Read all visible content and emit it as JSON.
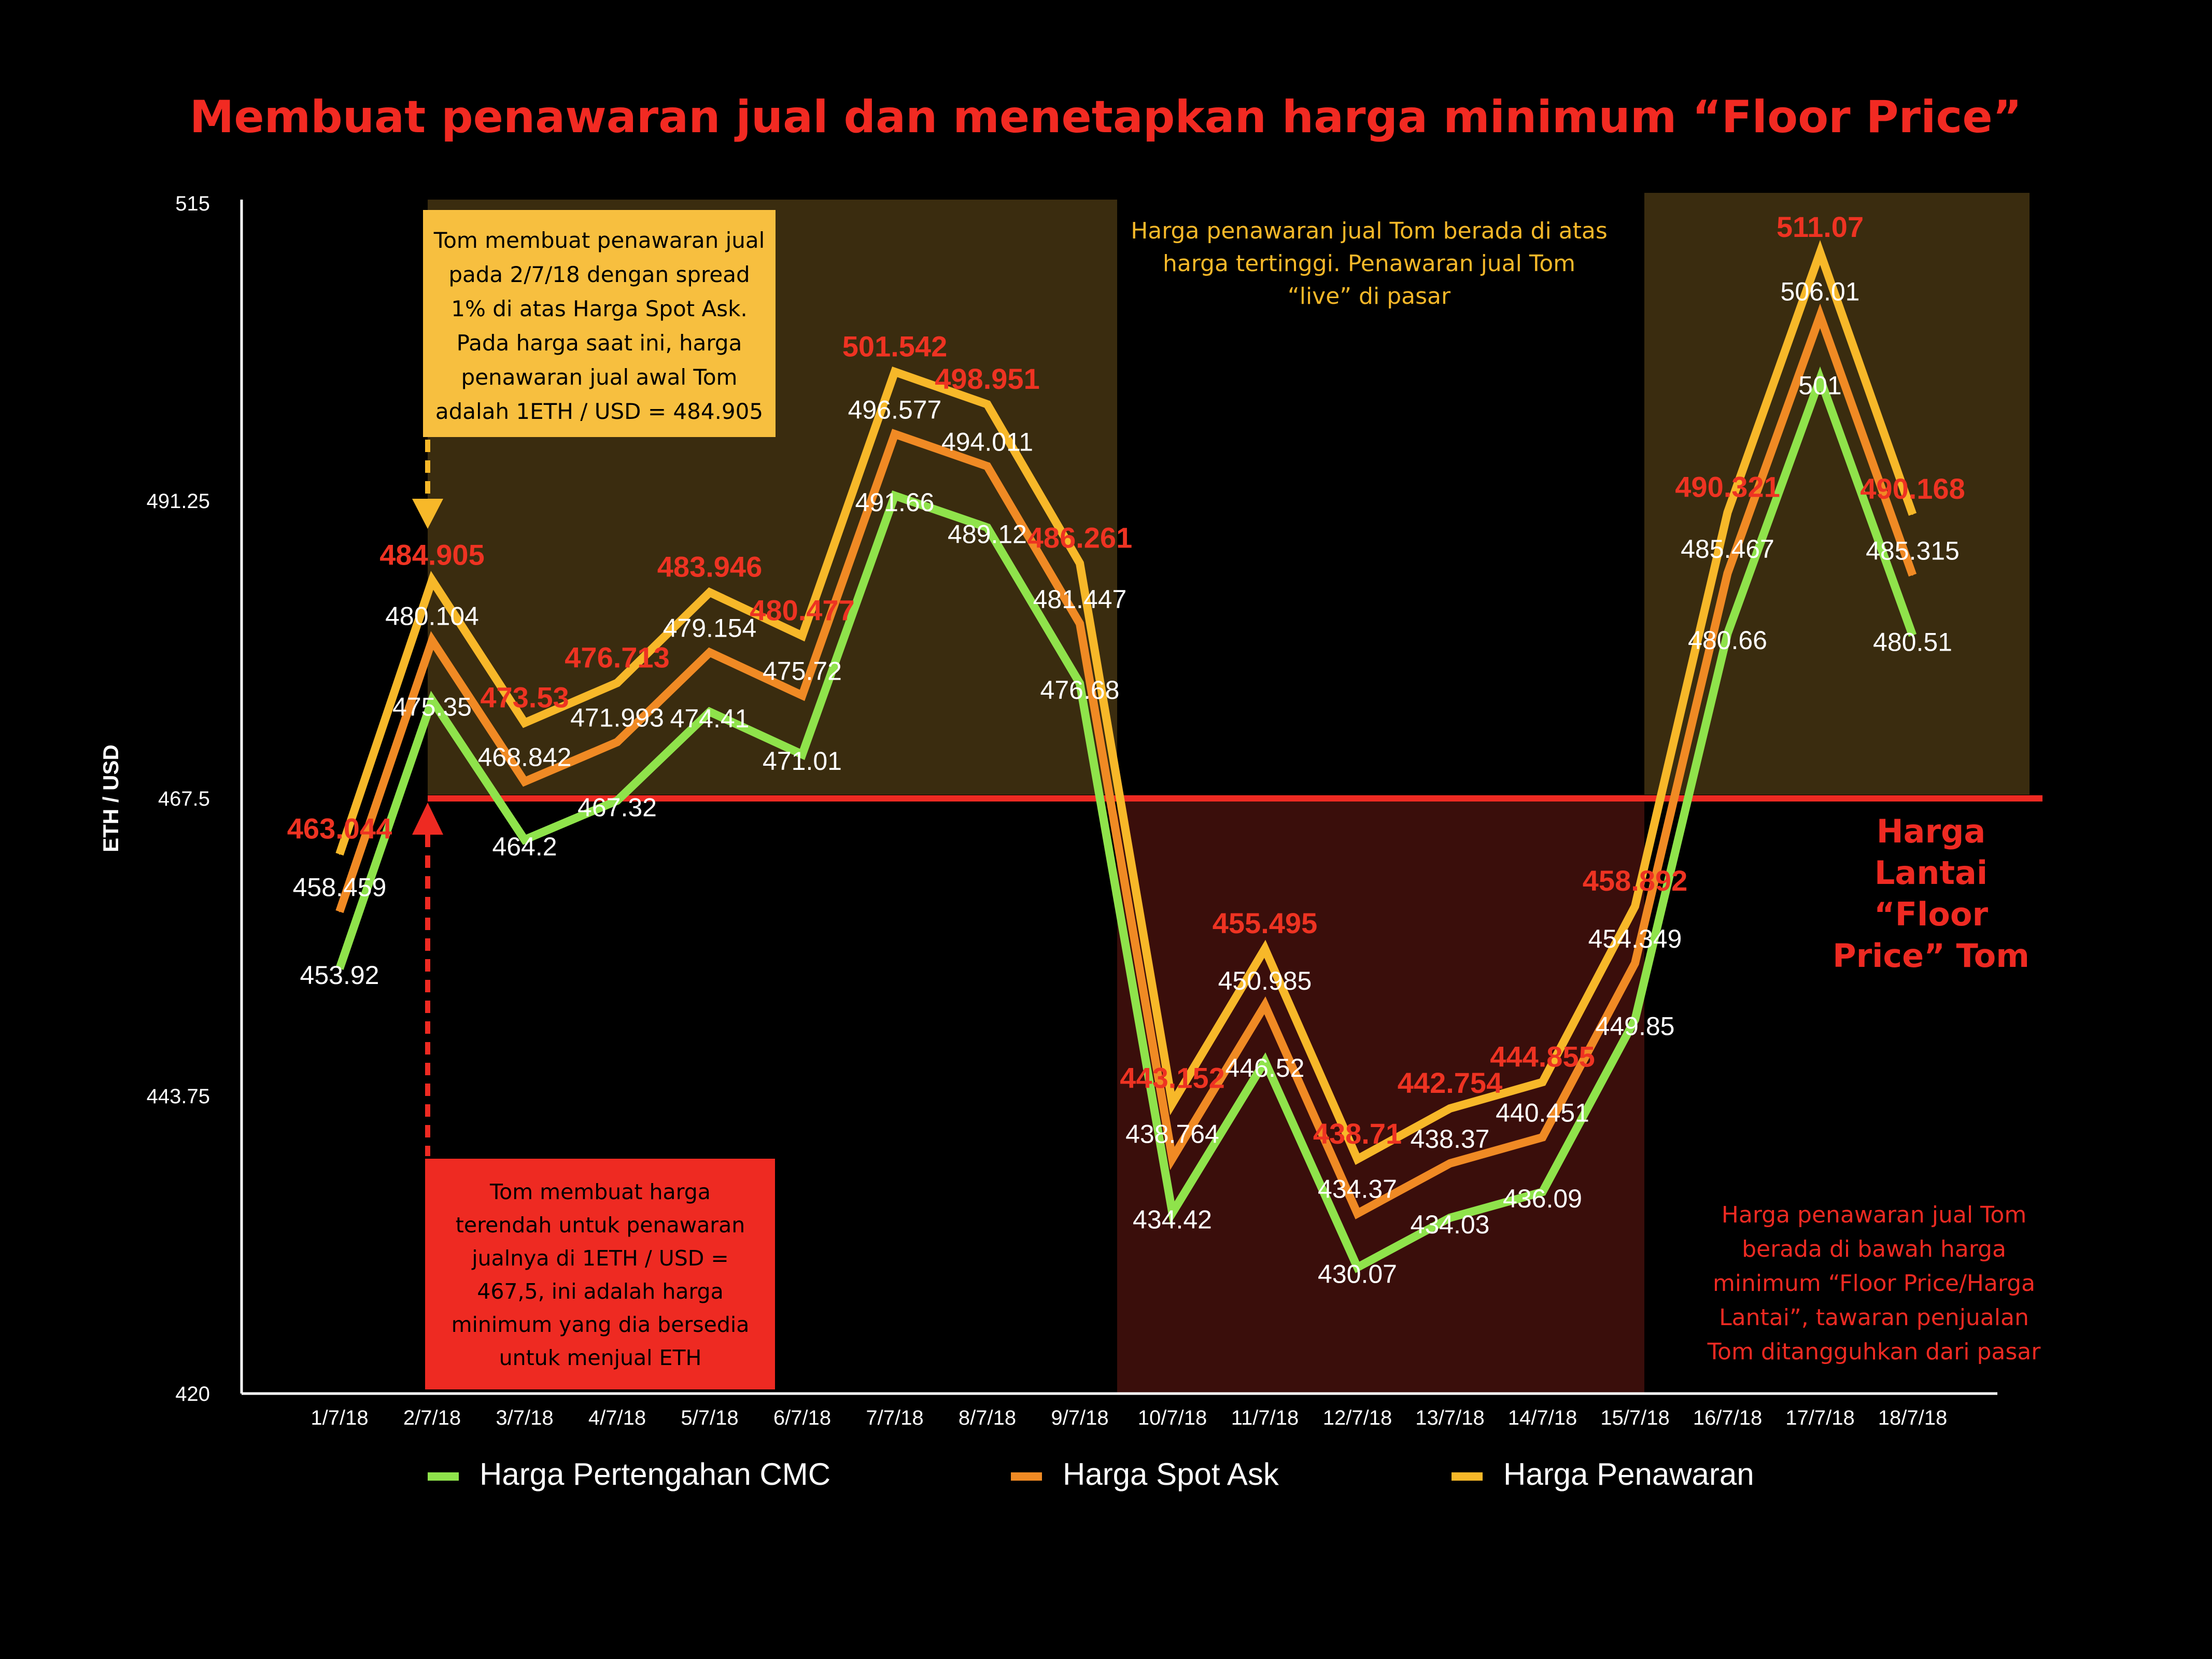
{
  "title": "Membuat penawaran jual dan menetapkan harga minimum “Floor Price”",
  "colors": {
    "background": "#000000",
    "title": "#f22a22",
    "cmc": "#8fe34b",
    "spot": "#f08a24",
    "offer": "#f7b829",
    "floor": "#ee2a22",
    "red_label": "#ee3322",
    "gold_zone": "#3a2c0f",
    "red_zone": "#3a0e0b",
    "yellow_box": "#f7bf3f",
    "red_box": "#ee2a22"
  },
  "chart_data": {
    "type": "line",
    "title": "Membuat penawaran jual dan menetapkan harga minimum “Floor Price”",
    "xlabel": "",
    "ylabel": "ETH / USD",
    "ylim": [
      420,
      515
    ],
    "yticks": [
      "515",
      "491.25",
      "467.5",
      "443.75",
      "420"
    ],
    "ytick_values": [
      515,
      491.25,
      467.5,
      443.75,
      420
    ],
    "categories": [
      "1/7/18",
      "2/7/18",
      "3/7/18",
      "4/7/18",
      "5/7/18",
      "6/7/18",
      "7/7/18",
      "8/7/18",
      "9/7/18",
      "10/7/18",
      "11/7/18",
      "12/7/18",
      "13/7/18",
      "14/7/18",
      "15/7/18",
      "16/7/18",
      "17/7/18",
      "18/7/18"
    ],
    "grid": false,
    "legend_position": "bottom",
    "series": [
      {
        "name": "Harga Pertengahan CMC",
        "color": "#8fe34b",
        "values": [
          453.92,
          475.35,
          464.2,
          467.32,
          474.41,
          471.01,
          491.66,
          489.12,
          476.68,
          434.42,
          446.52,
          430.07,
          434.03,
          436.09,
          449.85,
          480.66,
          501,
          480.51
        ],
        "labels": [
          "453.92",
          "475.35",
          "464.2",
          "467.32",
          "474.41",
          "471.01",
          "491.66",
          "489.12",
          "476.68",
          "434.42",
          "446.52",
          "430.07",
          "434.03",
          "436.09",
          "449.85",
          "480.66",
          "501",
          "480.51"
        ]
      },
      {
        "name": "Harga Spot Ask",
        "color": "#f08a24",
        "values": [
          458.459,
          480.104,
          468.842,
          471.993,
          479.154,
          475.72,
          496.577,
          494.011,
          481.447,
          438.764,
          450.985,
          434.37,
          438.37,
          440.451,
          454.349,
          485.467,
          506.01,
          485.315
        ],
        "labels": [
          "458.459",
          "480.104",
          "468.842",
          "471.993",
          "479.154",
          "475.72",
          "496.577",
          "494.011",
          "481.447",
          "438.764",
          "450.985",
          "434.37",
          "438.37",
          "440.451",
          "454.349",
          "485.467",
          "506.01",
          "485.315"
        ]
      },
      {
        "name": "Harga Penawaran",
        "color": "#f7b829",
        "values": [
          463.044,
          484.905,
          473.53,
          476.713,
          483.946,
          480.477,
          501.542,
          498.951,
          486.261,
          443.152,
          455.495,
          438.71,
          442.754,
          444.855,
          458.892,
          490.321,
          511.07,
          490.168
        ],
        "labels": [
          "463.044",
          "484.905",
          "473.53",
          "476.713",
          "483.946",
          "480.477",
          "501.542",
          "498.951",
          "486.261",
          "443.152",
          "455.495",
          "438.71",
          "442.754",
          "444.855",
          "458.892",
          "490.321",
          "511.07",
          "490.168"
        ]
      }
    ],
    "floor_price": 467.5,
    "floor_label": "Harga Lantai “Floor Price” Tom"
  },
  "annotations": {
    "yellow_box": [
      "Tom membuat penawaran jual",
      "pada 2/7/18 dengan spread",
      "1% di atas Harga Spot Ask.",
      "Pada harga saat ini, harga",
      "penawaran jual awal Tom",
      "adalah 1ETH / USD = 484.905"
    ],
    "red_box": [
      "Tom membuat harga",
      "terendah untuk penawaran",
      "jualnya di 1ETH / USD =",
      "467,5, ini adalah harga",
      "minimum yang dia bersedia",
      "untuk menjual ETH"
    ],
    "live_note": [
      "Harga penawaran jual Tom berada di atas",
      "harga tertinggi. Penawaran jual Tom",
      "“live” di pasar"
    ],
    "suspended_note": [
      "Harga penawaran jual Tom",
      "berada di bawah harga",
      "minimum “Floor Price/Harga",
      "Lantai”, tawaran penjualan",
      "Tom ditangguhkan dari pasar"
    ],
    "floor_label_lines": [
      "Harga",
      "Lantai",
      "“Floor",
      "Price” Tom"
    ]
  }
}
